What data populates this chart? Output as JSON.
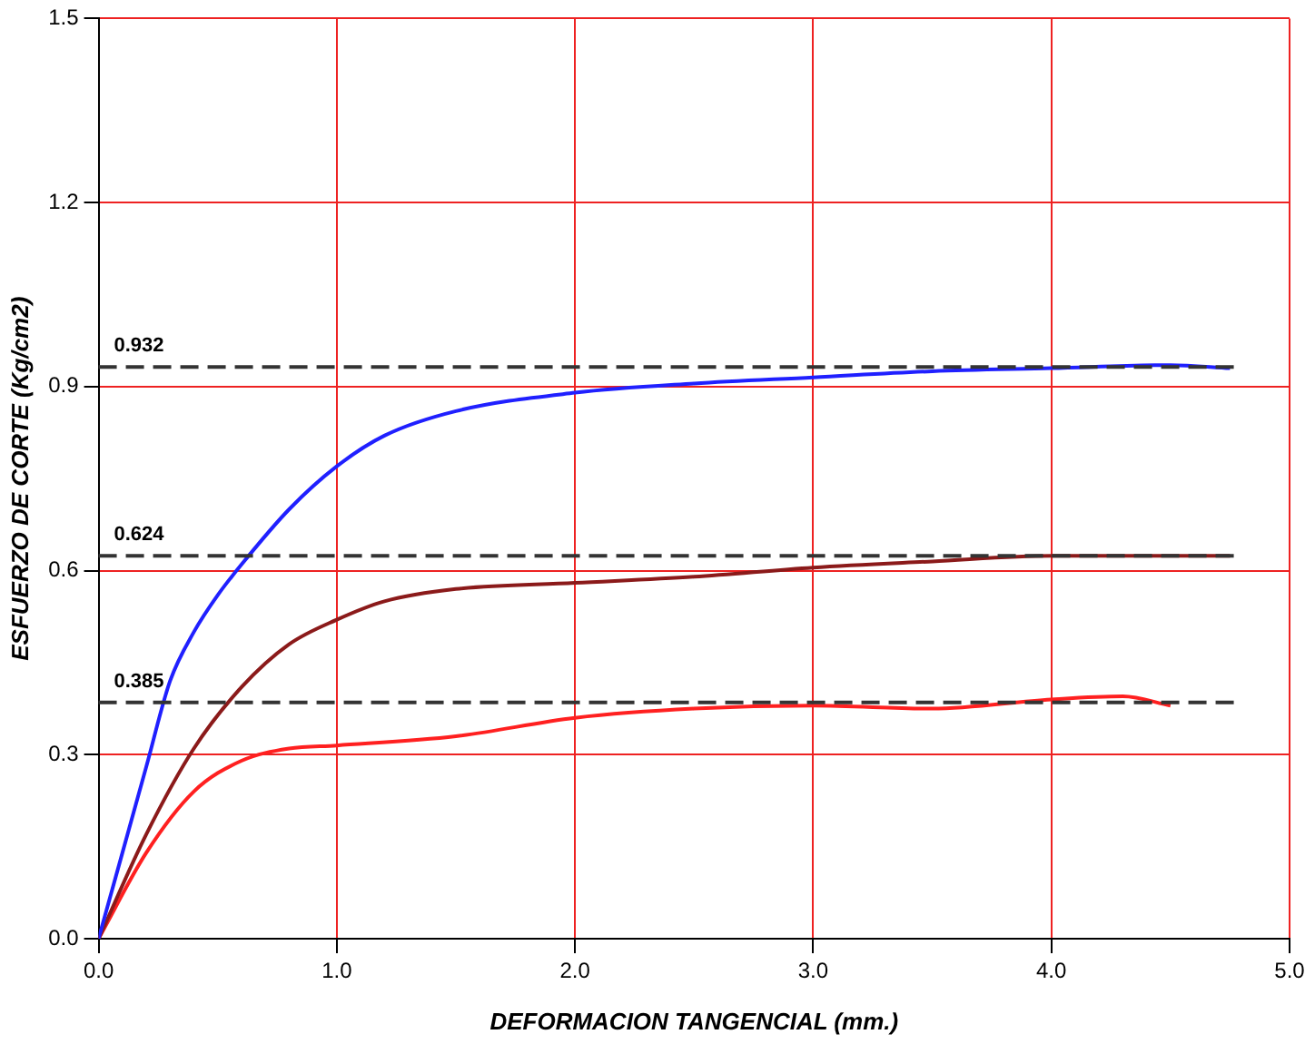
{
  "chart_data": {
    "type": "line",
    "xlabel": "DEFORMACION TANGENCIAL (mm.)",
    "ylabel": "ESFUERZO DE CORTE (Kg/cm2)",
    "xlim": [
      0,
      5
    ],
    "ylim": [
      0,
      1.5
    ],
    "xticks": [
      {
        "value": 0,
        "label": "0.0"
      },
      {
        "value": 1,
        "label": "1.0"
      },
      {
        "value": 2,
        "label": "2.0"
      },
      {
        "value": 3,
        "label": "3.0"
      },
      {
        "value": 4,
        "label": "4.0"
      },
      {
        "value": 5,
        "label": "5.0"
      }
    ],
    "yticks": [
      {
        "value": 0,
        "label": "0.0"
      },
      {
        "value": 0.3,
        "label": "0.3"
      },
      {
        "value": 0.6,
        "label": "0.6"
      },
      {
        "value": 0.9,
        "label": "0.9"
      },
      {
        "value": 1.2,
        "label": "1.2"
      },
      {
        "value": 1.5,
        "label": "1.5"
      }
    ],
    "grid": true,
    "legend": false,
    "marker": "none",
    "line_style": "solid",
    "series": [
      {
        "color": "#2020ff",
        "x": [
          0,
          0.1,
          0.2,
          0.3,
          0.4,
          0.5,
          0.6,
          0.8,
          1.0,
          1.2,
          1.5,
          2.0,
          2.5,
          3.0,
          3.5,
          4.0,
          4.5,
          4.75
        ],
        "values": [
          0,
          0.14,
          0.28,
          0.42,
          0.5,
          0.56,
          0.61,
          0.7,
          0.77,
          0.82,
          0.86,
          0.89,
          0.905,
          0.915,
          0.925,
          0.93,
          0.935,
          0.93
        ]
      },
      {
        "color": "#8b1a1a",
        "x": [
          0,
          0.2,
          0.4,
          0.6,
          0.8,
          1.0,
          1.2,
          1.5,
          2.0,
          2.5,
          3.0,
          3.5,
          4.0,
          4.75
        ],
        "values": [
          0,
          0.17,
          0.31,
          0.41,
          0.48,
          0.52,
          0.55,
          0.57,
          0.58,
          0.59,
          0.605,
          0.615,
          0.624,
          0.624
        ]
      },
      {
        "color": "#ff2020",
        "x": [
          0,
          0.2,
          0.4,
          0.6,
          0.8,
          1.0,
          1.5,
          2.0,
          2.5,
          3.0,
          3.5,
          4.0,
          4.3,
          4.5
        ],
        "values": [
          0,
          0.14,
          0.24,
          0.29,
          0.31,
          0.315,
          0.33,
          0.36,
          0.375,
          0.38,
          0.375,
          0.39,
          0.395,
          0.38
        ]
      }
    ],
    "ref_lines": [
      {
        "axis": "y",
        "value": 0.932,
        "label": "0.932",
        "color": "#333333",
        "line_style": "dashed"
      },
      {
        "axis": "y",
        "value": 0.624,
        "label": "0.624",
        "color": "#333333",
        "line_style": "dashed"
      },
      {
        "axis": "y",
        "value": 0.385,
        "label": "0.385",
        "color": "#333333",
        "line_style": "dashed"
      }
    ]
  }
}
